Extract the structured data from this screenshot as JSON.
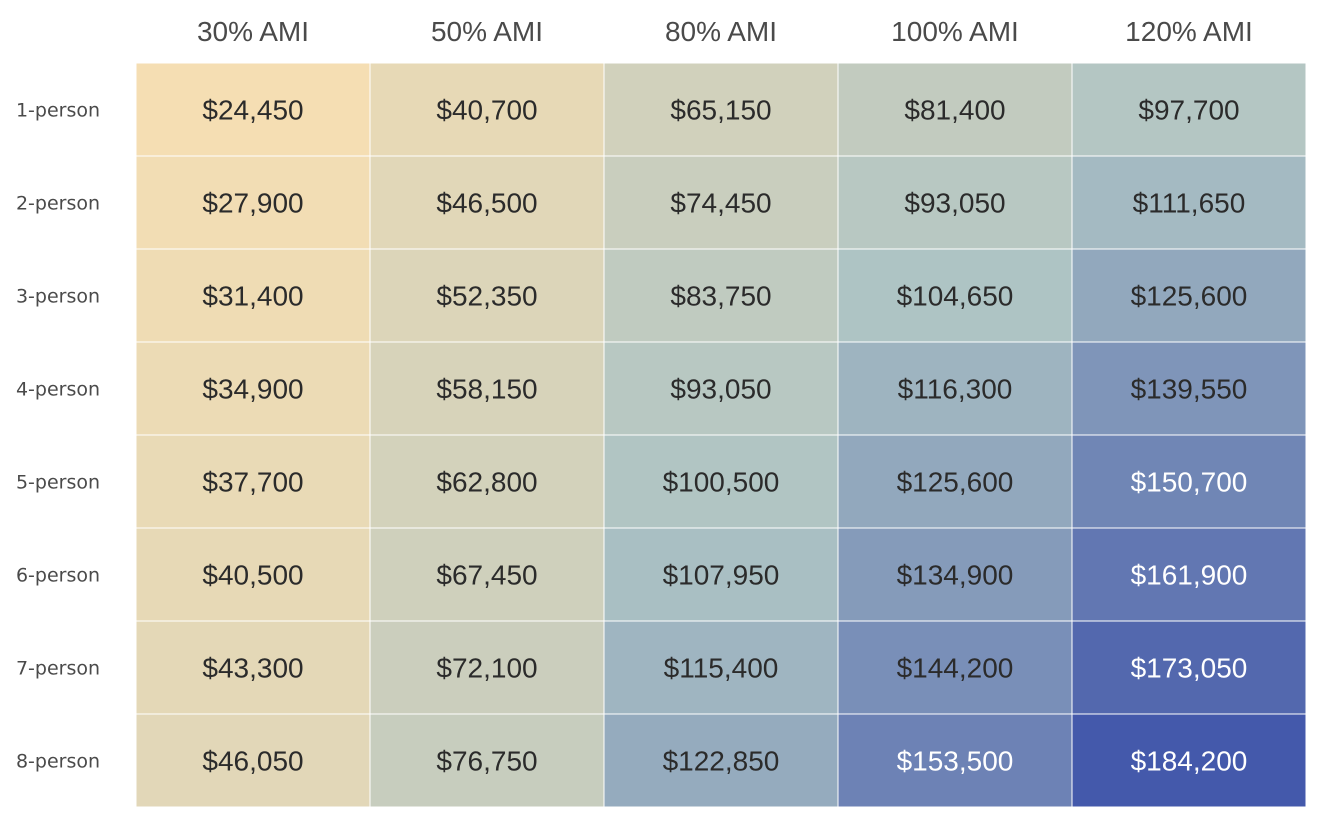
{
  "chart_data": {
    "type": "heatmap",
    "columns": [
      "30% AMI",
      "50% AMI",
      "80% AMI",
      "100% AMI",
      "120% AMI"
    ],
    "rows": [
      "1-person",
      "2-person",
      "3-person",
      "4-person",
      "5-person",
      "6-person",
      "7-person",
      "8-person"
    ],
    "values": [
      [
        24450,
        40700,
        65150,
        81400,
        97700
      ],
      [
        27900,
        46500,
        74450,
        93050,
        111650
      ],
      [
        31400,
        52350,
        83750,
        104650,
        125600
      ],
      [
        34900,
        58150,
        93050,
        116300,
        139550
      ],
      [
        37700,
        62800,
        100500,
        125600,
        150700
      ],
      [
        40500,
        67450,
        107950,
        134900,
        161900
      ],
      [
        43300,
        72100,
        115400,
        144200,
        173050
      ],
      [
        46050,
        76750,
        122850,
        153500,
        184200
      ]
    ],
    "labels": [
      [
        "$24,450",
        "$40,700",
        "$65,150",
        "$81,400",
        "$97,700"
      ],
      [
        "$27,900",
        "$46,500",
        "$74,450",
        "$93,050",
        "$111,650"
      ],
      [
        "$31,400",
        "$52,350",
        "$83,750",
        "$104,650",
        "$125,600"
      ],
      [
        "$34,900",
        "$58,150",
        "$93,050",
        "$116,300",
        "$139,550"
      ],
      [
        "$37,700",
        "$62,800",
        "$100,500",
        "$125,600",
        "$150,700"
      ],
      [
        "$40,500",
        "$67,450",
        "$107,950",
        "$134,900",
        "$161,900"
      ],
      [
        "$43,300",
        "$72,100",
        "$115,400",
        "$144,200",
        "$173,050"
      ],
      [
        "$46,050",
        "$76,750",
        "$122,850",
        "$153,500",
        "$184,200"
      ]
    ],
    "color_scale": {
      "low": "#f5deb3",
      "mid": "#aec4c4",
      "high": "#4459ab",
      "domain": [
        24450,
        184200
      ]
    },
    "text_colors": {
      "dark": "#2b2b2b",
      "light": "#ffffff"
    },
    "grid": false,
    "legend": "none"
  }
}
